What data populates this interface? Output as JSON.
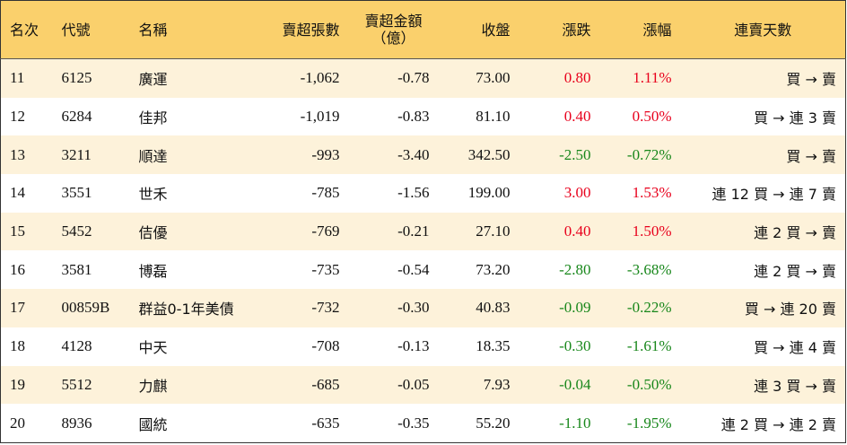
{
  "table": {
    "header": [
      "名次",
      "代號",
      "名稱",
      "賣超張數",
      "賣超金額\n（億）",
      "收盤",
      "漲跌",
      "漲幅",
      "連賣天數"
    ],
    "rows": [
      [
        "11",
        "6125",
        "廣運",
        "-1,062",
        "-0.78",
        "73.00",
        "0.80",
        "1.11%",
        "買 → 賣"
      ],
      [
        "12",
        "6284",
        "佳邦",
        "-1,019",
        "-0.83",
        "81.10",
        "0.40",
        "0.50%",
        "買 → 連 3 賣"
      ],
      [
        "13",
        "3211",
        "順達",
        "-993",
        "-3.40",
        "342.50",
        "-2.50",
        "-0.72%",
        "買 → 賣"
      ],
      [
        "14",
        "3551",
        "世禾",
        "-785",
        "-1.56",
        "199.00",
        "3.00",
        "1.53%",
        "連 12 買 → 連 7 賣"
      ],
      [
        "15",
        "5452",
        "佶優",
        "-769",
        "-0.21",
        "27.10",
        "0.40",
        "1.50%",
        "連 2 買 → 賣"
      ],
      [
        "16",
        "3581",
        "博磊",
        "-735",
        "-0.54",
        "73.20",
        "-2.80",
        "-3.68%",
        "連 2 買 → 賣"
      ],
      [
        "17",
        "00859B",
        "群益0-1年美債",
        "-732",
        "-0.30",
        "40.83",
        "-0.09",
        "-0.22%",
        "買 → 連 20 賣"
      ],
      [
        "18",
        "4128",
        "中天",
        "-708",
        "-0.13",
        "18.35",
        "-0.30",
        "-1.61%",
        "買 → 連 4 賣"
      ],
      [
        "19",
        "5512",
        "力麒",
        "-685",
        "-0.05",
        "7.93",
        "-0.04",
        "-0.50%",
        "連 3 買 → 賣"
      ],
      [
        "20",
        "8936",
        "國統",
        "-635",
        "-0.35",
        "55.20",
        "-1.10",
        "-1.95%",
        "連 2 買 → 連 2 賣"
      ]
    ]
  }
}
